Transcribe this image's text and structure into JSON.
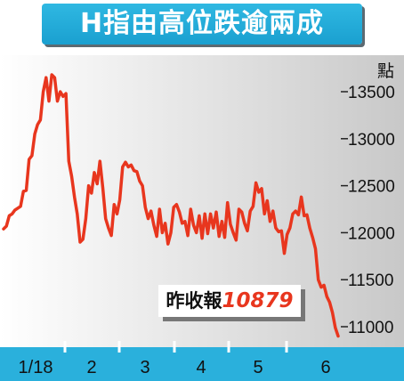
{
  "title": "H指由高位跌逾兩成",
  "unit_label": "點",
  "callout": {
    "label": "昨收報",
    "value": "10879"
  },
  "colors": {
    "line": "#e8361e",
    "banner": "#1fa8d8",
    "axis_band": "#2ab0dc",
    "value_text": "#e8361e"
  },
  "chart_data": {
    "type": "line",
    "title": "H指由高位跌逾兩成",
    "ylabel": "點",
    "ylim": [
      10850,
      13700
    ],
    "yticks": [
      11000,
      11500,
      12000,
      12500,
      13000,
      13500
    ],
    "xticks": [
      "1/18",
      "2",
      "3",
      "4",
      "5",
      "6"
    ],
    "grid": false,
    "series": [
      {
        "values": [
          12040,
          12070,
          12180,
          12200,
          12240,
          12260,
          12280,
          12440,
          12450,
          12780,
          12820,
          13050,
          13150,
          13200,
          13500,
          13650,
          13400,
          13680,
          13650,
          13400,
          13500,
          13450,
          13480,
          12760,
          12600,
          12380,
          12200,
          11900,
          11930,
          12150,
          12500,
          12420,
          12640,
          12520,
          12760,
          12480,
          12150,
          12050,
          11970,
          12300,
          12200,
          12350,
          12700,
          12750,
          12700,
          12720,
          12660,
          12650,
          12550,
          12500,
          12270,
          12150,
          12230,
          12080,
          11960,
          12250,
          12000,
          12100,
          11880,
          12000,
          12270,
          12300,
          12220,
          12100,
          12120,
          11970,
          12250,
          12080,
          12000,
          12180,
          11940,
          12200,
          11990,
          12200,
          12050,
          12220,
          11960,
          12120,
          11950,
          12320,
          12090,
          12000,
          11920,
          12250,
          12220,
          12100,
          12020,
          12230,
          12280,
          12530,
          12430,
          12470,
          12200,
          12340,
          12120,
          12230,
          12050,
          12010,
          12020,
          11780,
          11980,
          12050,
          12200,
          12230,
          12190,
          12380,
          12180,
          12190,
          12050,
          11950,
          11830,
          11500,
          11420,
          11440,
          11320,
          11260,
          11150,
          10990,
          10900
        ]
      }
    ]
  }
}
